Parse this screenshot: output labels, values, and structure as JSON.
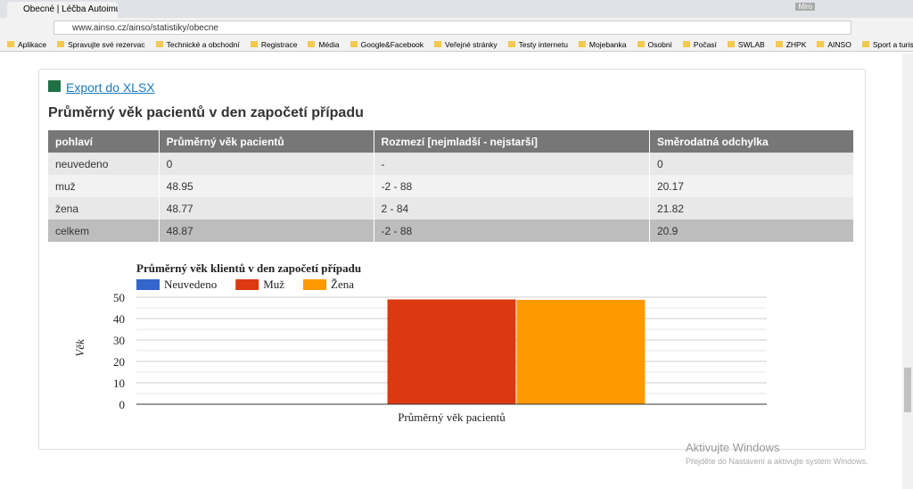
{
  "browser": {
    "tab_title": "Obecné | Léčba Autoimu",
    "user": "Miro",
    "url": "www.ainso.cz/ainso/statistiky/obecne",
    "bookmarks": [
      "Aplikace",
      "Spravujte své rezervac",
      "Technické a obchodní",
      "Registrace",
      "Média",
      "Google&Facebook",
      "Veřejné stránky",
      "Testy internetu",
      "Mojebanka",
      "Osobní",
      "Počasí",
      "SWLAB",
      "ZHPK",
      "AINSO",
      "Sport a turistika"
    ]
  },
  "export_link": "Export do XLSX",
  "table": {
    "title": "Průměrný věk pacientů v den započetí případu",
    "header": [
      "pohlaví",
      "Průměrný věk pacientů",
      "Rozmezí [nejmladší - nejstarší]",
      "Směrodatná odchylka"
    ],
    "rows": [
      [
        "neuvedeno",
        "0",
        "-",
        "0"
      ],
      [
        "muž",
        "48.95",
        "-2 - 88",
        "20.17"
      ],
      [
        "žena",
        "48.77",
        "2 - 84",
        "21.82"
      ],
      [
        "celkem",
        "48.87",
        "-2 - 88",
        "20.9"
      ]
    ]
  },
  "chart_data": {
    "type": "bar",
    "title": "Průměrný věk klientů v den započetí případu",
    "ylabel": "Věk",
    "categories": [
      "Průměrný věk pacientů"
    ],
    "series": [
      {
        "name": "Neuvedeno",
        "color": "#3366cc",
        "values": [
          0
        ]
      },
      {
        "name": "Muž",
        "color": "#dc3912",
        "values": [
          48.95
        ]
      },
      {
        "name": "Žena",
        "color": "#ff9900",
        "values": [
          48.77
        ]
      }
    ],
    "ylim": [
      0,
      50
    ],
    "yticks": [
      0,
      10,
      20,
      30,
      40,
      50
    ],
    "minor_yticks": [
      5,
      15,
      25,
      35,
      45
    ],
    "grid": true,
    "legend": "top"
  },
  "watermark": {
    "title": "Aktivujte Windows",
    "subtitle": "Přejděte do Nastavení a aktivujte systém Windows."
  }
}
